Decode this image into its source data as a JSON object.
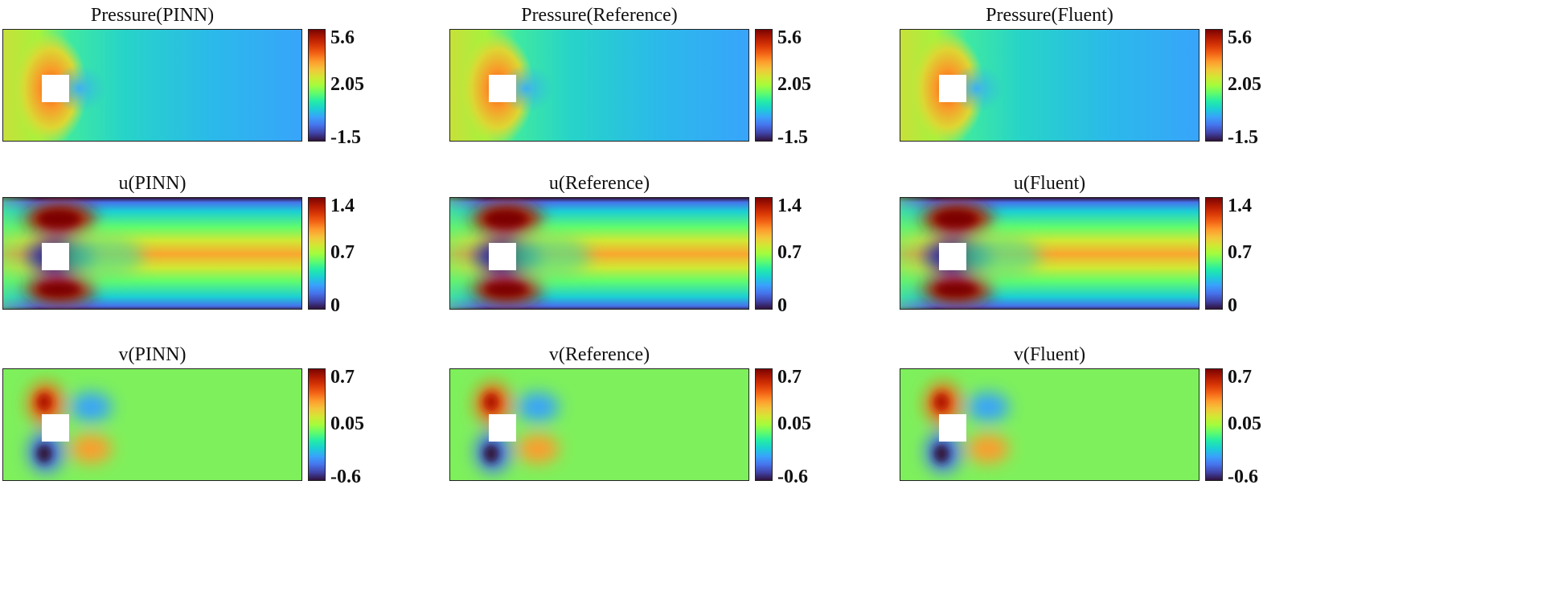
{
  "chart_data": [
    {
      "type": "heatmap",
      "title": "Pressure(PINN)",
      "colorbar": {
        "max": "5.6",
        "mid": "2.05",
        "min": "-1.5"
      },
      "colormap": "turbo",
      "field": "pressure"
    },
    {
      "type": "heatmap",
      "title": "Pressure(Reference)",
      "colorbar": {
        "max": "5.6",
        "mid": "2.05",
        "min": "-1.5"
      },
      "colormap": "turbo",
      "field": "pressure"
    },
    {
      "type": "heatmap",
      "title": "Pressure(Fluent)",
      "colorbar": {
        "max": "5.6",
        "mid": "2.05",
        "min": "-1.5"
      },
      "colormap": "turbo",
      "field": "pressure"
    },
    {
      "type": "heatmap",
      "title": "u(PINN)",
      "colorbar": {
        "max": "1.4",
        "mid": "0.7",
        "min": "0"
      },
      "colormap": "turbo",
      "field": "u"
    },
    {
      "type": "heatmap",
      "title": "u(Reference)",
      "colorbar": {
        "max": "1.4",
        "mid": "0.7",
        "min": "0"
      },
      "colormap": "turbo",
      "field": "u"
    },
    {
      "type": "heatmap",
      "title": "u(Fluent)",
      "colorbar": {
        "max": "1.4",
        "mid": "0.7",
        "min": "0"
      },
      "colormap": "turbo",
      "field": "u"
    },
    {
      "type": "heatmap",
      "title": "v(PINN)",
      "colorbar": {
        "max": "0.7",
        "mid": "0.05",
        "min": "-0.6"
      },
      "colormap": "turbo",
      "field": "v"
    },
    {
      "type": "heatmap",
      "title": "v(Reference)",
      "colorbar": {
        "max": "0.7",
        "mid": "0.05",
        "min": "-0.6"
      },
      "colormap": "turbo",
      "field": "v"
    },
    {
      "type": "heatmap",
      "title": "v(Fluent)",
      "colorbar": {
        "max": "0.7",
        "mid": "0.05",
        "min": "-0.6"
      },
      "colormap": "turbo",
      "field": "v"
    }
  ]
}
